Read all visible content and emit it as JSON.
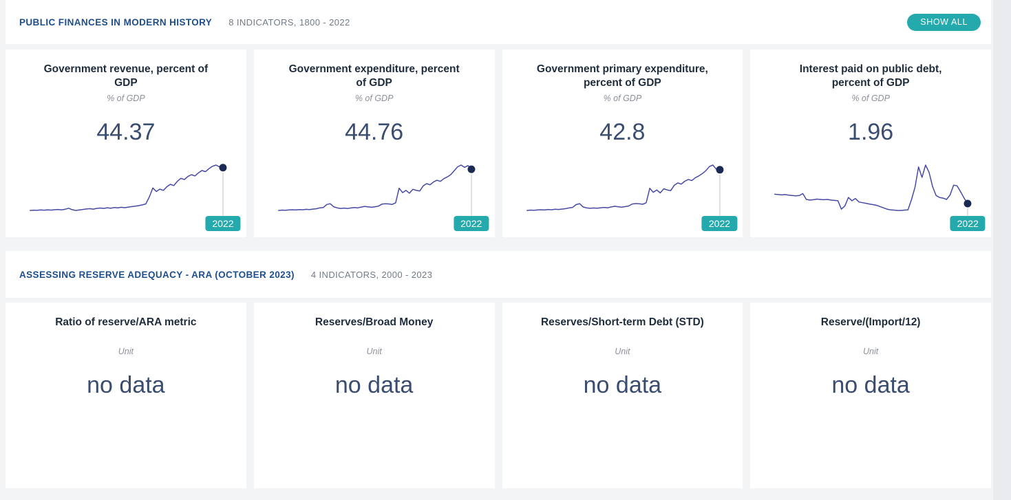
{
  "colors": {
    "background": "#f3f4f6",
    "card": "#ffffff",
    "accent_teal": "#24aaad",
    "section_title_blue": "#1d4f8f",
    "value_navy": "#3a4d70",
    "line": "#4649a3",
    "dot": "#1b2a52",
    "connector": "#c0c3c8"
  },
  "sections": [
    {
      "title": "PUBLIC FINANCES IN MODERN HISTORY",
      "meta": "8 INDICATORS, 1800 - 2022",
      "show_all_label": "SHOW ALL",
      "cards": [
        {
          "title": "Government revenue, percent of GDP",
          "unit": "% of GDP",
          "value": "44.37",
          "year": "2022"
        },
        {
          "title": "Government expenditure, percent of GDP",
          "unit": "% of GDP",
          "value": "44.76",
          "year": "2022"
        },
        {
          "title": "Government primary expenditure, percent of GDP",
          "unit": "% of GDP",
          "value": "42.8",
          "year": "2022"
        },
        {
          "title": "Interest paid on public debt, percent of GDP",
          "unit": "% of GDP",
          "value": "1.96",
          "year": "2022"
        }
      ]
    },
    {
      "title": "ASSESSING RESERVE ADEQUACY - ARA (OCTOBER 2023)",
      "meta": "4 INDICATORS, 2000 - 2023",
      "cards": [
        {
          "title": "Ratio of reserve/ARA metric",
          "unit": "Unit",
          "value": "no data"
        },
        {
          "title": "Reserves/Broad Money",
          "unit": "Unit",
          "value": "no data"
        },
        {
          "title": "Reserves/Short-term Debt (STD)",
          "unit": "Unit",
          "value": "no data"
        },
        {
          "title": "Reserve/(Import/12)",
          "unit": "Unit",
          "value": "no data"
        }
      ]
    }
  ],
  "chart_data": [
    {
      "type": "line",
      "title": "Government revenue, percent of GDP",
      "ylabel": "% of GDP",
      "x_range": [
        1800,
        2022
      ],
      "end_label": "2022",
      "last_value": 44.37,
      "values": [
        8.8,
        9.0,
        8.9,
        9.2,
        9.0,
        9.3,
        9.1,
        9.4,
        9.6,
        9.3,
        9.8,
        10.6,
        9.4,
        8.8,
        9.2,
        9.6,
        10.0,
        10.3,
        9.9,
        10.5,
        10.8,
        10.5,
        11.0,
        10.7,
        11.2,
        10.9,
        11.4,
        11.1,
        11.6,
        12.0,
        12.4,
        12.8,
        13.4,
        14.2,
        20.0,
        27.5,
        24.5,
        26.5,
        25.5,
        28.5,
        30.5,
        29.5,
        33.0,
        35.5,
        34.5,
        37.0,
        38.5,
        37.5,
        40.0,
        42.0,
        41.0,
        43.5,
        45.5,
        46.5,
        45.0,
        44.37
      ]
    },
    {
      "type": "line",
      "title": "Government expenditure, percent of GDP",
      "ylabel": "% of GDP",
      "x_range": [
        1800,
        2022
      ],
      "end_label": "2022",
      "last_value": 44.76,
      "values": [
        8.2,
        8.5,
        8.3,
        8.6,
        8.8,
        8.6,
        9.0,
        8.8,
        9.2,
        9.0,
        9.4,
        9.7,
        10.5,
        10.8,
        13.5,
        14.2,
        11.5,
        10.5,
        10.0,
        10.3,
        10.0,
        10.4,
        10.8,
        10.5,
        11.2,
        11.8,
        11.4,
        11.0,
        11.5,
        12.0,
        13.8,
        14.2,
        14.0,
        13.6,
        15.0,
        28.0,
        24.0,
        26.0,
        23.5,
        27.0,
        26.0,
        25.5,
        30.0,
        32.0,
        31.0,
        33.5,
        35.0,
        34.0,
        36.5,
        38.0,
        40.0,
        43.5,
        47.0,
        48.5,
        46.5,
        48.0,
        44.76
      ]
    },
    {
      "type": "line",
      "title": "Government primary expenditure, percent of GDP",
      "ylabel": "% of GDP",
      "x_range": [
        1800,
        2022
      ],
      "end_label": "2022",
      "last_value": 42.8,
      "values": [
        8.0,
        8.3,
        8.1,
        8.4,
        8.6,
        8.4,
        8.8,
        8.6,
        9.0,
        8.8,
        9.2,
        9.5,
        10.2,
        10.6,
        13.0,
        13.8,
        11.0,
        10.2,
        9.8,
        10.1,
        9.9,
        10.3,
        10.6,
        10.3,
        11.0,
        11.6,
        11.2,
        10.8,
        11.3,
        11.8,
        13.5,
        13.9,
        13.7,
        13.3,
        14.6,
        27.0,
        23.5,
        25.5,
        23.0,
        26.5,
        25.5,
        25.0,
        29.5,
        31.5,
        30.5,
        33.0,
        34.5,
        33.5,
        36.0,
        37.5,
        39.5,
        42.0,
        45.5,
        46.8,
        43.2,
        42.8
      ]
    },
    {
      "type": "line",
      "title": "Interest paid on public debt, percent of GDP",
      "ylabel": "% of GDP",
      "x_range": [
        1800,
        2022
      ],
      "end_label": "2022",
      "last_value": 1.96,
      "values": [
        3.4,
        3.35,
        3.3,
        3.35,
        3.25,
        3.2,
        3.15,
        3.2,
        3.5,
        2.6,
        2.5,
        2.55,
        2.65,
        2.6,
        2.55,
        2.6,
        2.5,
        2.45,
        2.4,
        1.1,
        1.6,
        2.9,
        2.4,
        2.75,
        2.2,
        2.1,
        2.0,
        1.9,
        1.8,
        1.7,
        1.5,
        1.3,
        1.1,
        1.0,
        0.95,
        0.9,
        0.9,
        0.95,
        1.0,
        2.6,
        4.5,
        7.6,
        6.0,
        7.9,
        6.8,
        4.6,
        3.2,
        2.9,
        2.8,
        2.6,
        3.3,
        4.8,
        4.7,
        3.8,
        2.8,
        1.96
      ]
    }
  ]
}
